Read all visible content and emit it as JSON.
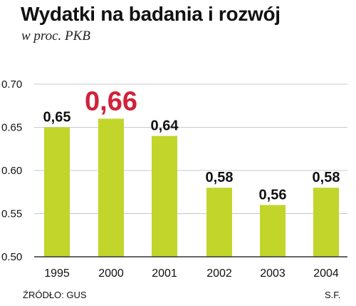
{
  "header": {
    "title": "Wydatki na badania i rozwój",
    "subtitle": "w proc. PKB"
  },
  "footer": {
    "source": "ŹRÓDŁO: GUS",
    "author": "S.F."
  },
  "colors": {
    "bar": "#c2d52b",
    "highlight_label": "#d0223a",
    "grid": "#c8c8c8",
    "axis": "#333333",
    "text": "#111111"
  },
  "chart_data": {
    "type": "bar",
    "categories": [
      "1995",
      "2000",
      "2001",
      "2002",
      "2003",
      "2004"
    ],
    "values": [
      0.65,
      0.66,
      0.64,
      0.58,
      0.56,
      0.58
    ],
    "value_labels": [
      "0,65",
      "0,66",
      "0,64",
      "0,58",
      "0,56",
      "0,58"
    ],
    "highlighted_index": 1,
    "y_ticks": [
      0.5,
      0.55,
      0.6,
      0.65,
      0.7
    ],
    "y_tick_labels": [
      "0.50",
      "0.55",
      "0.60",
      "0.65",
      "0.70"
    ],
    "ylim": [
      0.5,
      0.7
    ],
    "grid": true,
    "title": "Wydatki na badania i rozwój",
    "subtitle": "w proc. PKB"
  }
}
